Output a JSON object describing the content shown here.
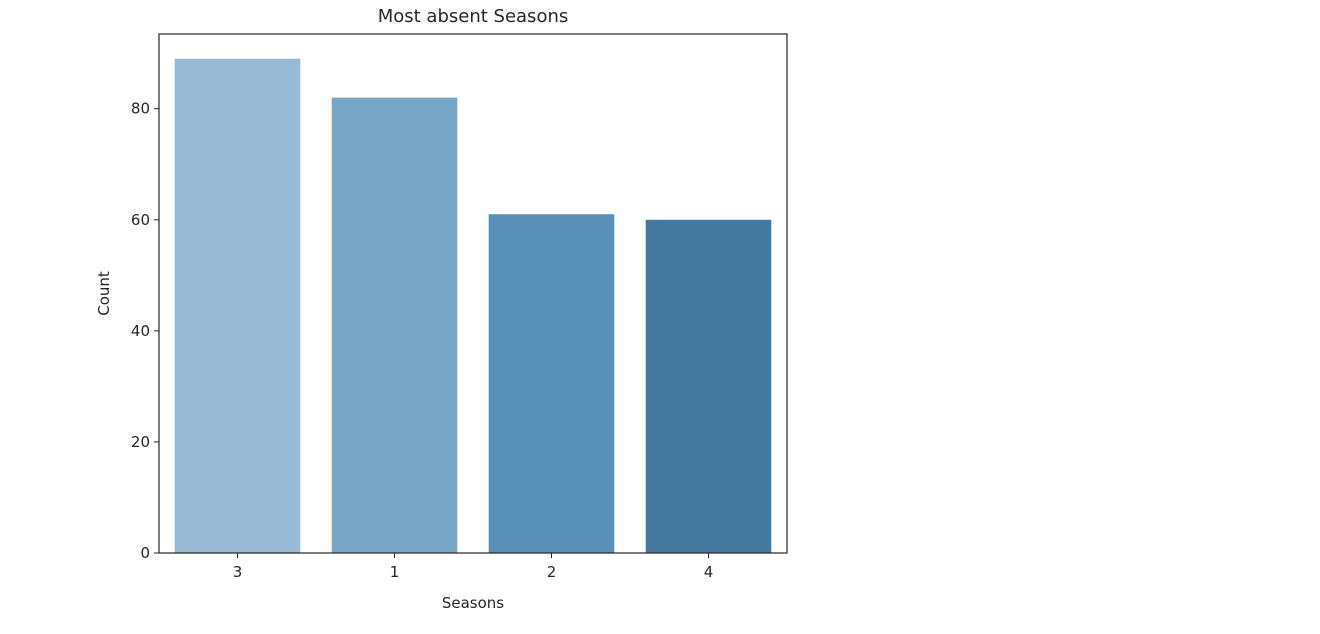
{
  "chart_data": {
    "type": "bar",
    "title": "Most absent Seasons",
    "xlabel": "Seasons",
    "ylabel": "Count",
    "categories": [
      "3",
      "1",
      "2",
      "4"
    ],
    "values": [
      89,
      82,
      61,
      60
    ],
    "colors": [
      "#97b9d3",
      "#76a5c6",
      "#5890b8",
      "#45789f"
    ],
    "ylim": [
      0,
      93.45
    ],
    "yticks": [
      0,
      20,
      40,
      60,
      80
    ],
    "grid": false,
    "legend": "none"
  }
}
